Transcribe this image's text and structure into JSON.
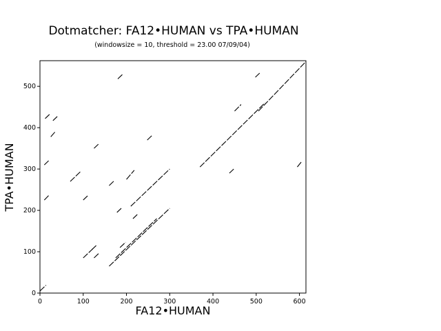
{
  "chart_data": {
    "type": "scatter",
    "title": "Dotmatcher: FA12•HUMAN vs TPA•HUMAN",
    "subtitle": "(windowsize = 10, threshold = 23.00  07/09/04)",
    "xlabel": "FA12•HUMAN",
    "ylabel": "TPA•HUMAN",
    "xlim": [
      0,
      615
    ],
    "ylim": [
      0,
      562
    ],
    "xticks": [
      "0",
      "100",
      "200",
      "300",
      "400",
      "500",
      "600"
    ],
    "yticks": [
      "0",
      "100",
      "200",
      "300",
      "400",
      "500"
    ],
    "grid": false,
    "segments": [
      [
        [
          0,
          5
        ],
        [
          14,
          19
        ]
      ],
      [
        [
          180,
          518
        ],
        [
          192,
          530
        ]
      ],
      [
        [
          498,
          522
        ],
        [
          508,
          532
        ]
      ],
      [
        [
          505,
          440
        ],
        [
          615,
          560
        ]
      ],
      [
        [
          12,
          422
        ],
        [
          22,
          432
        ]
      ],
      [
        [
          30,
          417
        ],
        [
          40,
          427
        ]
      ],
      [
        [
          25,
          378
        ],
        [
          35,
          390
        ]
      ],
      [
        [
          450,
          440
        ],
        [
          465,
          456
        ]
      ],
      [
        [
          248,
          370
        ],
        [
          260,
          382
        ]
      ],
      [
        [
          125,
          350
        ],
        [
          135,
          360
        ]
      ],
      [
        [
          10,
          310
        ],
        [
          20,
          320
        ]
      ],
      [
        [
          595,
          305
        ],
        [
          605,
          318
        ]
      ],
      [
        [
          370,
          305
        ],
        [
          520,
          460
        ]
      ],
      [
        [
          438,
          290
        ],
        [
          448,
          300
        ]
      ],
      [
        [
          70,
          270
        ],
        [
          95,
          295
        ]
      ],
      [
        [
          200,
          275
        ],
        [
          218,
          297
        ]
      ],
      [
        [
          160,
          260
        ],
        [
          172,
          272
        ]
      ],
      [
        [
          210,
          210
        ],
        [
          300,
          300
        ]
      ],
      [
        [
          10,
          225
        ],
        [
          22,
          238
        ]
      ],
      [
        [
          100,
          225
        ],
        [
          110,
          235
        ]
      ],
      [
        [
          178,
          195
        ],
        [
          188,
          205
        ]
      ],
      [
        [
          215,
          180
        ],
        [
          225,
          190
        ]
      ],
      [
        [
          175,
          85
        ],
        [
          270,
          180
        ]
      ],
      [
        [
          100,
          85
        ],
        [
          125,
          110
        ]
      ],
      [
        [
          125,
          85
        ],
        [
          137,
          97
        ]
      ],
      [
        [
          120,
          105
        ],
        [
          130,
          115
        ]
      ],
      [
        [
          185,
          110
        ],
        [
          198,
          123
        ]
      ],
      [
        [
          160,
          65
        ],
        [
          300,
          205
        ]
      ]
    ]
  }
}
